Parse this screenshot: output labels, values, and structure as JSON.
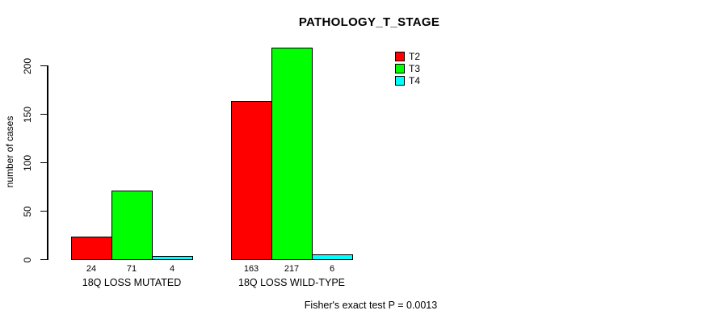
{
  "chart_data": {
    "type": "bar",
    "title": "PATHOLOGY_T_STAGE",
    "ylabel": "number of cases",
    "xlabel": "",
    "ylim": [
      0,
      200
    ],
    "yticks": [
      0,
      50,
      100,
      150,
      200
    ],
    "grid": false,
    "legend_position": "top-right-inside",
    "categories": [
      "18Q LOSS MUTATED",
      "18Q LOSS WILD-TYPE"
    ],
    "series": [
      {
        "name": "T2",
        "color": "#ff0000",
        "values": [
          24,
          163
        ]
      },
      {
        "name": "T3",
        "color": "#00ff00",
        "values": [
          71,
          217
        ]
      },
      {
        "name": "T4",
        "color": "#00ffff",
        "values": [
          4,
          6
        ]
      }
    ],
    "bar_value_labels": [
      [
        24,
        71,
        4
      ],
      [
        163,
        217,
        6
      ]
    ],
    "annotation": "Fisher's exact test P = 0.0013",
    "colors": {
      "background": "#ffffff",
      "axis": "#000000",
      "text": "#000000"
    }
  }
}
